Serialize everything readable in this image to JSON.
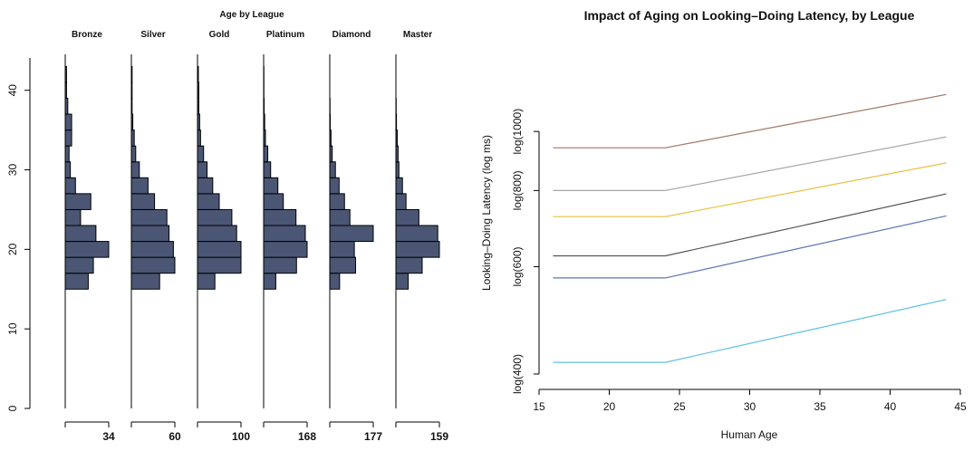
{
  "chart_data": [
    {
      "type": "bar",
      "orientation": "horizontal-histogram",
      "title": "Age by League",
      "ylim": [
        0,
        46
      ],
      "y_ticks": [
        0,
        10,
        20,
        30,
        40
      ],
      "bin_edges": [
        15,
        17,
        19,
        21,
        23,
        25,
        27,
        29,
        31,
        33,
        35,
        37,
        39,
        41,
        43,
        45
      ],
      "panels": [
        {
          "name": "Bronze",
          "max_count": "34",
          "counts": [
            18,
            22,
            34,
            24,
            12,
            20,
            8,
            4,
            3,
            5,
            5,
            2,
            1,
            1,
            0
          ]
        },
        {
          "name": "Silver",
          "max_count": "60",
          "counts": [
            39,
            60,
            58,
            52,
            49,
            32,
            23,
            11,
            6,
            4,
            2,
            1,
            1,
            1,
            0
          ]
        },
        {
          "name": "Gold",
          "max_count": "100",
          "counts": [
            40,
            100,
            100,
            90,
            79,
            50,
            35,
            22,
            14,
            7,
            5,
            3,
            3,
            2,
            0
          ]
        },
        {
          "name": "Platinum",
          "max_count": "168",
          "counts": [
            47,
            127,
            168,
            161,
            125,
            76,
            55,
            27,
            16,
            7,
            4,
            2,
            1,
            1,
            0
          ]
        },
        {
          "name": "Diamond",
          "max_count": "177",
          "counts": [
            40,
            105,
            100,
            177,
            82,
            60,
            38,
            23,
            10,
            5,
            2,
            1,
            0,
            0,
            0
          ]
        },
        {
          "name": "Master",
          "max_count": "159",
          "counts": [
            45,
            96,
            159,
            153,
            84,
            37,
            24,
            11,
            8,
            5,
            2,
            1,
            0,
            0,
            0
          ]
        }
      ]
    },
    {
      "type": "line",
      "title": "Impact of Aging on Looking–Doing Latency, by League",
      "xlabel": "Human Age",
      "ylabel": "Looking–Doing Latency (log ms)",
      "x_ticks": [
        15,
        20,
        25,
        30,
        35,
        40,
        45
      ],
      "y_ticks": [
        {
          "value": 400,
          "label": "log(400)"
        },
        {
          "value": 600,
          "label": "log(600)"
        },
        {
          "value": 800,
          "label": "log(800)"
        },
        {
          "value": 1000,
          "label": "log(1000)"
        }
      ],
      "xlim": [
        15,
        45
      ],
      "ylim_log": [
        380,
        1320
      ],
      "series": [
        {
          "color": "#a07868",
          "values": [
            [
              16,
              940
            ],
            [
              24,
              940
            ],
            [
              44,
              1150
            ]
          ]
        },
        {
          "color": "#a8a8a8",
          "values": [
            [
              16,
              800
            ],
            [
              24,
              800
            ],
            [
              44,
              980
            ]
          ]
        },
        {
          "color": "#e8c040",
          "values": [
            [
              16,
              725
            ],
            [
              24,
              725
            ],
            [
              44,
              888
            ]
          ]
        },
        {
          "color": "#555555",
          "values": [
            [
              16,
              625
            ],
            [
              24,
              625
            ],
            [
              44,
              790
            ]
          ]
        },
        {
          "color": "#5e74b0",
          "values": [
            [
              16,
              575
            ],
            [
              24,
              575
            ],
            [
              44,
              727
            ]
          ]
        },
        {
          "color": "#5ec0e0",
          "values": [
            [
              16,
              418
            ],
            [
              24,
              418
            ],
            [
              44,
              530
            ]
          ]
        }
      ]
    }
  ]
}
